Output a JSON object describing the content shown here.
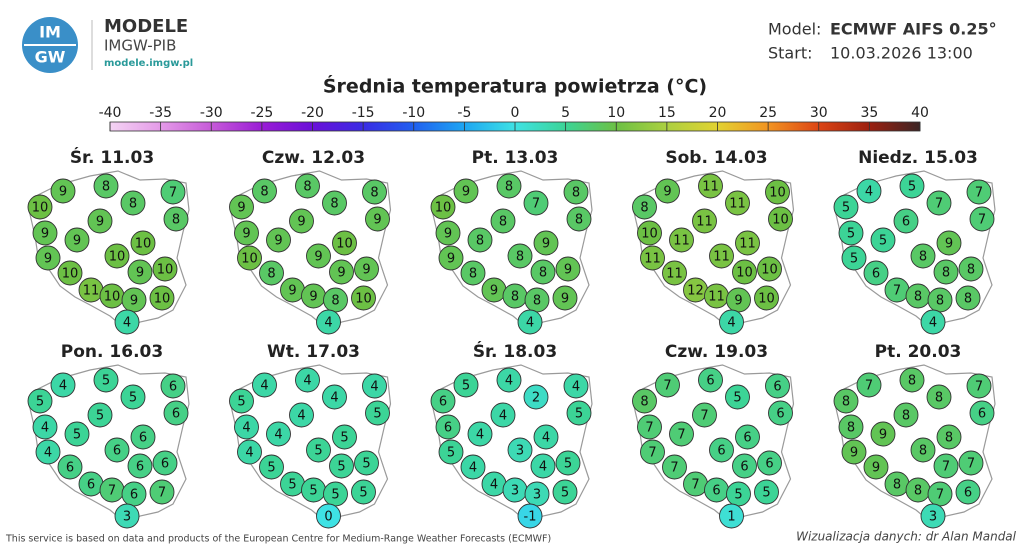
{
  "header": {
    "logo": [
      "IM",
      "GW"
    ],
    "brand": "MODELE",
    "org": "IMGW-PIB",
    "url": "modele.imgw.pl",
    "model_label": "Model:",
    "model": "ECMWF AIFS 0.25°",
    "start_label": "Start:",
    "start": "10.03.2026 13:00"
  },
  "title": "Średnia temperatura powietrza (°C)",
  "colorbar": {
    "ticks": [
      -40,
      -35,
      -30,
      -25,
      -20,
      -15,
      -10,
      -5,
      0,
      5,
      10,
      15,
      20,
      25,
      30,
      35,
      40
    ],
    "colors": [
      "#f4d4f4",
      "#e49ae8",
      "#c65ad8",
      "#9a1cd6",
      "#6a10d8",
      "#3a2ce4",
      "#2060f0",
      "#1ea6f2",
      "#3ee2e4",
      "#3cd496",
      "#6cc044",
      "#acd040",
      "#e2d232",
      "#f29422",
      "#dc4414",
      "#9c2010",
      "#3c2424"
    ]
  },
  "maps": [
    {
      "title": "Śr. 11.03",
      "values": [
        9,
        8,
        7,
        10,
        8,
        9,
        8,
        9,
        9,
        10,
        10,
        9,
        9,
        10,
        10,
        11,
        10,
        9,
        10,
        4
      ]
    },
    {
      "title": "Czw. 12.03",
      "values": [
        8,
        8,
        8,
        9,
        8,
        9,
        9,
        9,
        9,
        10,
        9,
        10,
        9,
        9,
        8,
        9,
        9,
        8,
        10,
        4
      ]
    },
    {
      "title": "Pt. 13.03",
      "values": [
        9,
        8,
        8,
        10,
        7,
        8,
        8,
        9,
        8,
        9,
        8,
        9,
        8,
        9,
        8,
        9,
        8,
        8,
        9,
        4
      ]
    },
    {
      "title": "Sob. 14.03",
      "values": [
        9,
        11,
        10,
        8,
        11,
        11,
        10,
        10,
        11,
        11,
        11,
        11,
        10,
        10,
        11,
        12,
        11,
        9,
        10,
        4
      ]
    },
    {
      "title": "Niedz. 15.03",
      "values": [
        4,
        5,
        7,
        5,
        7,
        6,
        7,
        5,
        5,
        9,
        8,
        5,
        8,
        8,
        6,
        7,
        8,
        8,
        8,
        4
      ]
    },
    {
      "title": "Pon. 16.03",
      "values": [
        4,
        5,
        6,
        5,
        5,
        5,
        6,
        4,
        5,
        6,
        6,
        4,
        6,
        6,
        6,
        6,
        7,
        6,
        7,
        3
      ]
    },
    {
      "title": "Wt. 17.03",
      "values": [
        4,
        4,
        4,
        5,
        4,
        4,
        5,
        4,
        4,
        5,
        5,
        4,
        5,
        5,
        5,
        5,
        5,
        5,
        5,
        0
      ]
    },
    {
      "title": "Śr. 18.03",
      "values": [
        5,
        4,
        4,
        6,
        2,
        4,
        5,
        6,
        4,
        4,
        3,
        5,
        4,
        5,
        4,
        4,
        3,
        3,
        5,
        -1
      ]
    },
    {
      "title": "Czw. 19.03",
      "values": [
        7,
        6,
        6,
        8,
        5,
        7,
        6,
        7,
        7,
        6,
        6,
        7,
        6,
        6,
        7,
        7,
        6,
        5,
        5,
        1
      ]
    },
    {
      "title": "Pt. 20.03",
      "values": [
        7,
        8,
        7,
        8,
        8,
        8,
        6,
        8,
        9,
        8,
        8,
        9,
        7,
        7,
        9,
        8,
        8,
        7,
        6,
        3
      ]
    }
  ],
  "footer": {
    "source": "This service is based on data and products of the European Centre for Medium-Range Weather Forecasts (ECMWF)",
    "credit": "Wizualizacja danych: dr Alan Mandal"
  }
}
